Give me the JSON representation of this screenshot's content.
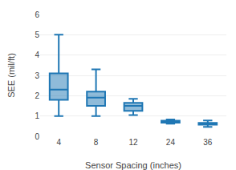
{
  "chart_data": {
    "type": "box",
    "xlabel": "Sensor Spacing (inches)",
    "ylabel": "SEE (mil/ft)",
    "categories": [
      "4",
      "8",
      "12",
      "24",
      "36"
    ],
    "values": [
      {
        "whislo": 1.0,
        "q1": 1.8,
        "med": 2.3,
        "q3": 3.1,
        "whishi": 5.0
      },
      {
        "whislo": 1.0,
        "q1": 1.5,
        "med": 1.9,
        "q3": 2.2,
        "whishi": 3.3
      },
      {
        "whislo": 1.05,
        "q1": 1.25,
        "med": 1.5,
        "q3": 1.65,
        "whishi": 1.85
      },
      {
        "whislo": 0.62,
        "q1": 0.67,
        "med": 0.72,
        "q3": 0.77,
        "whishi": 0.83
      },
      {
        "whislo": 0.46,
        "q1": 0.57,
        "med": 0.62,
        "q3": 0.66,
        "whishi": 0.78
      }
    ],
    "ylim": [
      0,
      6
    ],
    "yticks": [
      0,
      1,
      2,
      3,
      4,
      5,
      6
    ],
    "grid": true
  }
}
